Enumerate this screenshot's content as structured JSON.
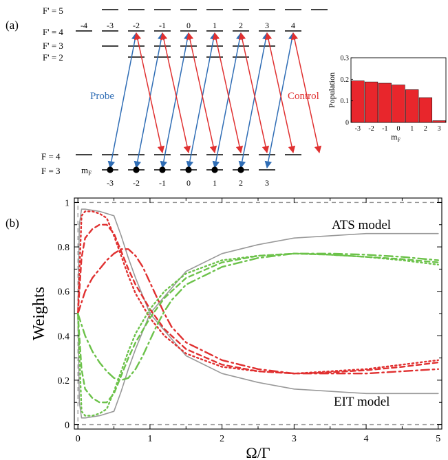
{
  "panel_a": {
    "label": "(a)",
    "levels": {
      "fp5": "F' = 5",
      "fp4": "F' = 4",
      "fp3": "F' = 3",
      "fp2": "F' = 2",
      "f4": "F = 4",
      "f3": "F = 3"
    },
    "mf_top": [
      "-4",
      "-3",
      "-2",
      "-1",
      "0",
      "1",
      "2",
      "3",
      "4"
    ],
    "mf_bottom": [
      "-3",
      "-2",
      "-1",
      "0",
      "1",
      "2",
      "3"
    ],
    "mf_label": "m",
    "mf_sub": "F",
    "probe_label": "Probe",
    "control_label": "Control",
    "colors": {
      "probe": "#2f6db5",
      "control": "#e03030"
    }
  },
  "panel_b": {
    "label": "(b)"
  },
  "chart_data": [
    {
      "type": "bar",
      "ylabel": "Population",
      "xlabel": "m",
      "xlabel_sub": "F",
      "categories": [
        "-3",
        "-2",
        "-1",
        "0",
        "1",
        "2",
        "3"
      ],
      "values": [
        0.193,
        0.188,
        0.182,
        0.174,
        0.152,
        0.115,
        0.008
      ],
      "ylim": [
        0,
        0.3
      ],
      "yticks": [
        "0",
        "0.1",
        "0.2",
        "0.3"
      ],
      "bar_color": "#e8262c"
    },
    {
      "type": "line",
      "xlabel": "Ω/Γ",
      "ylabel": "Weights",
      "xlim": [
        -0.05,
        5.05
      ],
      "ylim": [
        -0.02,
        1.02
      ],
      "xticks": [
        "0",
        "1",
        "2",
        "3",
        "4",
        "5"
      ],
      "yticks": [
        "0",
        "0.2",
        "0.4",
        "0.6",
        "0.8",
        "1"
      ],
      "annotations": [
        "ATS model",
        "EIT model"
      ],
      "colors": {
        "gray": "#999999",
        "red": "#e03030",
        "green": "#6cc24a"
      },
      "series": [
        {
          "color": "gray",
          "style": "solid",
          "x": [
            0,
            0.02,
            0.05,
            0.1,
            0.3,
            0.5,
            0.6,
            0.7,
            0.8,
            1,
            1.5,
            2,
            2.5,
            3,
            3.5,
            4,
            4.5,
            5
          ],
          "y": [
            0.5,
            0.9,
            0.97,
            0.97,
            0.96,
            0.94,
            0.85,
            0.75,
            0.66,
            0.5,
            0.31,
            0.23,
            0.19,
            0.16,
            0.15,
            0.14,
            0.14,
            0.14
          ]
        },
        {
          "color": "gray",
          "style": "solid",
          "x": [
            0,
            0.02,
            0.05,
            0.1,
            0.3,
            0.5,
            0.6,
            0.7,
            0.8,
            1,
            1.5,
            2,
            2.5,
            3,
            3.5,
            4,
            4.5,
            5
          ],
          "y": [
            0.5,
            0.1,
            0.03,
            0.03,
            0.04,
            0.06,
            0.15,
            0.25,
            0.34,
            0.5,
            0.69,
            0.77,
            0.81,
            0.84,
            0.85,
            0.86,
            0.86,
            0.86
          ]
        },
        {
          "color": "red",
          "style": "dotted",
          "x": [
            0,
            0.05,
            0.1,
            0.2,
            0.3,
            0.4,
            0.5,
            0.6,
            0.7,
            0.8,
            1,
            1.2,
            1.5,
            2,
            2.5,
            3,
            3.5,
            4,
            4.5,
            5
          ],
          "y": [
            0.5,
            0.94,
            0.96,
            0.96,
            0.95,
            0.93,
            0.85,
            0.76,
            0.67,
            0.59,
            0.48,
            0.4,
            0.32,
            0.26,
            0.24,
            0.23,
            0.24,
            0.25,
            0.27,
            0.29
          ]
        },
        {
          "color": "red",
          "style": "dashed",
          "x": [
            0,
            0.05,
            0.1,
            0.2,
            0.3,
            0.4,
            0.5,
            0.6,
            0.7,
            0.8,
            1,
            1.2,
            1.5,
            2,
            2.5,
            3,
            3.5,
            4,
            4.5,
            5
          ],
          "y": [
            0.5,
            0.75,
            0.84,
            0.88,
            0.9,
            0.9,
            0.86,
            0.78,
            0.7,
            0.63,
            0.52,
            0.43,
            0.34,
            0.27,
            0.24,
            0.23,
            0.235,
            0.245,
            0.26,
            0.28
          ]
        },
        {
          "color": "red",
          "style": "dashdot",
          "x": [
            0,
            0.1,
            0.2,
            0.3,
            0.4,
            0.5,
            0.6,
            0.7,
            0.8,
            0.9,
            1,
            1.1,
            1.2,
            1.3,
            1.5,
            2,
            2.5,
            3,
            3.5,
            4,
            4.5,
            5
          ],
          "y": [
            0.5,
            0.6,
            0.66,
            0.7,
            0.74,
            0.77,
            0.79,
            0.79,
            0.76,
            0.71,
            0.64,
            0.57,
            0.5,
            0.44,
            0.37,
            0.29,
            0.25,
            0.23,
            0.23,
            0.23,
            0.24,
            0.25
          ]
        },
        {
          "color": "green",
          "style": "dotted",
          "x": [
            0,
            0.05,
            0.1,
            0.2,
            0.3,
            0.4,
            0.5,
            0.6,
            0.7,
            0.8,
            1,
            1.2,
            1.5,
            2,
            2.5,
            3,
            3.5,
            4,
            4.5,
            5
          ],
          "y": [
            0.5,
            0.06,
            0.04,
            0.04,
            0.05,
            0.07,
            0.15,
            0.24,
            0.33,
            0.41,
            0.52,
            0.6,
            0.68,
            0.74,
            0.76,
            0.77,
            0.765,
            0.755,
            0.74,
            0.72
          ]
        },
        {
          "color": "green",
          "style": "dashed",
          "x": [
            0,
            0.05,
            0.1,
            0.2,
            0.3,
            0.4,
            0.5,
            0.6,
            0.7,
            0.8,
            1,
            1.2,
            1.5,
            2,
            2.5,
            3,
            3.5,
            4,
            4.5,
            5
          ],
          "y": [
            0.5,
            0.25,
            0.16,
            0.12,
            0.1,
            0.1,
            0.14,
            0.22,
            0.3,
            0.37,
            0.48,
            0.57,
            0.66,
            0.73,
            0.76,
            0.77,
            0.765,
            0.755,
            0.745,
            0.73
          ]
        },
        {
          "color": "green",
          "style": "dashdot",
          "x": [
            0,
            0.1,
            0.2,
            0.3,
            0.4,
            0.5,
            0.6,
            0.7,
            0.8,
            0.9,
            1,
            1.1,
            1.2,
            1.3,
            1.5,
            2,
            2.5,
            3,
            3.5,
            4,
            4.5,
            5
          ],
          "y": [
            0.5,
            0.4,
            0.33,
            0.28,
            0.24,
            0.21,
            0.2,
            0.21,
            0.25,
            0.31,
            0.38,
            0.45,
            0.51,
            0.56,
            0.63,
            0.71,
            0.75,
            0.77,
            0.77,
            0.765,
            0.755,
            0.74
          ]
        }
      ]
    }
  ]
}
